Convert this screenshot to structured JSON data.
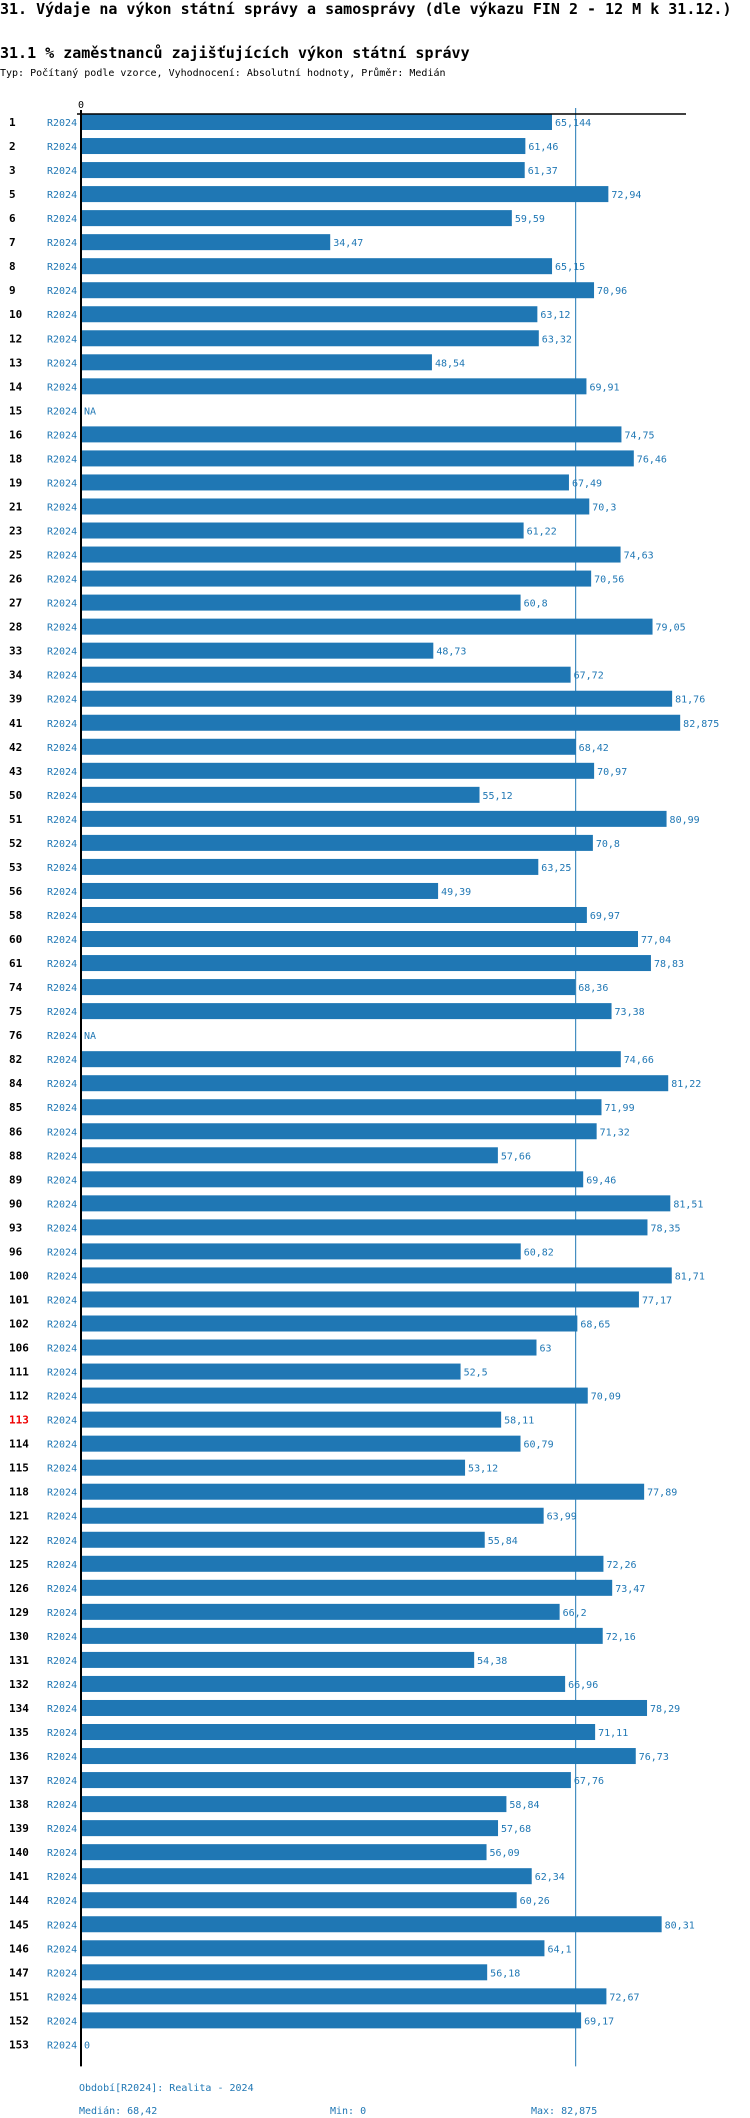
{
  "header": {
    "title": "31. Výdaje na výkon státní správy a samosprávy (dle výkazu FIN 2 - 12 M k 31.12.)",
    "subtitle": "31.1 % zaměstnanců zajišťujících výkon státní správy",
    "type_line": "Typ: Počítaný podle vzorce, Vyhodnocení: Absolutní hodnoty, Průměr: Medián"
  },
  "colors": {
    "bar": "#1f77b4",
    "label": "#1f77b4",
    "highlight_row": "#ee0000",
    "axis": "#000000"
  },
  "chart_data": {
    "type": "bar",
    "orientation": "horizontal",
    "title": "31.1 % zaměstnanců zajišťujících výkon státní správy",
    "xlabel": "",
    "ylabel": "",
    "x_tick_labels": [
      "0"
    ],
    "xlim": [
      0,
      82.875
    ],
    "period": "R2024",
    "highlighted_category": "113",
    "reference_line": {
      "name": "Medián",
      "value": 68.42
    },
    "categories": [
      "1",
      "2",
      "3",
      "5",
      "6",
      "7",
      "8",
      "9",
      "10",
      "12",
      "13",
      "14",
      "15",
      "16",
      "18",
      "19",
      "21",
      "23",
      "25",
      "26",
      "27",
      "28",
      "33",
      "34",
      "39",
      "41",
      "42",
      "43",
      "50",
      "51",
      "52",
      "53",
      "56",
      "58",
      "60",
      "61",
      "74",
      "75",
      "76",
      "82",
      "84",
      "85",
      "86",
      "88",
      "89",
      "90",
      "93",
      "96",
      "100",
      "101",
      "102",
      "106",
      "111",
      "112",
      "113",
      "114",
      "115",
      "118",
      "121",
      "122",
      "125",
      "126",
      "129",
      "130",
      "131",
      "132",
      "134",
      "135",
      "136",
      "137",
      "138",
      "139",
      "140",
      "141",
      "144",
      "145",
      "146",
      "147",
      "151",
      "152",
      "153"
    ],
    "values": [
      65.144,
      61.46,
      61.37,
      72.94,
      59.59,
      34.47,
      65.15,
      70.96,
      63.12,
      63.32,
      48.54,
      69.91,
      null,
      74.75,
      76.46,
      67.49,
      70.3,
      61.22,
      74.63,
      70.56,
      60.8,
      79.05,
      48.73,
      67.72,
      81.76,
      82.875,
      68.42,
      70.97,
      55.12,
      80.99,
      70.8,
      63.25,
      49.39,
      69.97,
      77.04,
      78.83,
      68.36,
      73.38,
      null,
      74.66,
      81.22,
      71.99,
      71.32,
      57.66,
      69.46,
      81.51,
      78.35,
      60.82,
      81.71,
      77.17,
      68.65,
      63,
      52.5,
      70.09,
      58.11,
      60.79,
      53.12,
      77.89,
      63.99,
      55.84,
      72.26,
      73.47,
      66.2,
      72.16,
      54.38,
      66.96,
      78.29,
      71.11,
      76.73,
      67.76,
      58.84,
      57.68,
      56.09,
      62.34,
      60.26,
      80.31,
      64.1,
      56.18,
      72.67,
      69.17,
      0
    ],
    "value_labels": [
      "65,144",
      "61,46",
      "61,37",
      "72,94",
      "59,59",
      "34,47",
      "65,15",
      "70,96",
      "63,12",
      "63,32",
      "48,54",
      "69,91",
      "NA",
      "74,75",
      "76,46",
      "67,49",
      "70,3",
      "61,22",
      "74,63",
      "70,56",
      "60,8",
      "79,05",
      "48,73",
      "67,72",
      "81,76",
      "82,875",
      "68,42",
      "70,97",
      "55,12",
      "80,99",
      "70,8",
      "63,25",
      "49,39",
      "69,97",
      "77,04",
      "78,83",
      "68,36",
      "73,38",
      "NA",
      "74,66",
      "81,22",
      "71,99",
      "71,32",
      "57,66",
      "69,46",
      "81,51",
      "78,35",
      "60,82",
      "81,71",
      "77,17",
      "68,65",
      "63",
      "52,5",
      "70,09",
      "58,11",
      "60,79",
      "53,12",
      "77,89",
      "63,99",
      "55,84",
      "72,26",
      "73,47",
      "66,2",
      "72,16",
      "54,38",
      "66,96",
      "78,29",
      "71,11",
      "76,73",
      "67,76",
      "58,84",
      "57,68",
      "56,09",
      "62,34",
      "60,26",
      "80,31",
      "64,1",
      "56,18",
      "72,67",
      "69,17",
      "0"
    ]
  },
  "footer": {
    "period_note": "Období[R2024]: Realita - 2024",
    "median": "Medián: 68,42",
    "min": "Min: 0",
    "max": "Max: 82,875"
  }
}
